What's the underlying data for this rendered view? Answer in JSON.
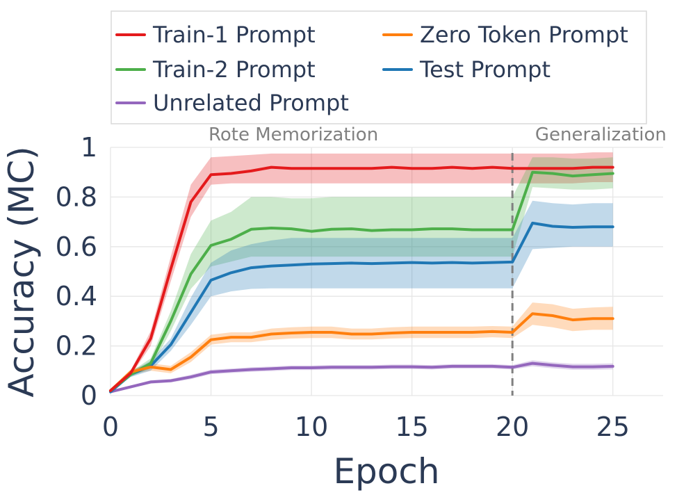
{
  "chart_data": {
    "type": "line",
    "xlabel": "Epoch",
    "ylabel": "Accuracy (MC)",
    "xlim": [
      0,
      27.5
    ],
    "ylim": [
      0,
      1.0
    ],
    "xticks": [
      0,
      5,
      10,
      15,
      20,
      25
    ],
    "yticks": [
      0,
      0.2,
      0.4,
      0.6,
      0.8,
      1.0
    ],
    "xtick_labels": [
      "0",
      "5",
      "10",
      "15",
      "20",
      "25"
    ],
    "ytick_labels": [
      "0",
      "0.2",
      "0.4",
      "0.6",
      "0.8",
      "1"
    ],
    "grid": true,
    "legend_position": "top",
    "x": [
      0,
      1,
      2,
      3,
      4,
      5,
      6,
      7,
      8,
      9,
      10,
      11,
      12,
      13,
      14,
      15,
      16,
      17,
      18,
      19,
      20,
      21,
      22,
      23,
      24,
      25
    ],
    "series": [
      {
        "name": "Train-1 Prompt",
        "color": "#e41a1c",
        "values": [
          0.02,
          0.09,
          0.23,
          0.51,
          0.78,
          0.89,
          0.895,
          0.905,
          0.92,
          0.915,
          0.915,
          0.915,
          0.915,
          0.915,
          0.92,
          0.915,
          0.915,
          0.92,
          0.915,
          0.92,
          0.915,
          0.915,
          0.915,
          0.915,
          0.92,
          0.92
        ],
        "lower": [
          0.015,
          0.08,
          0.2,
          0.46,
          0.72,
          0.85,
          0.855,
          0.855,
          0.855,
          0.855,
          0.855,
          0.855,
          0.855,
          0.855,
          0.855,
          0.855,
          0.855,
          0.855,
          0.855,
          0.855,
          0.855,
          0.855,
          0.855,
          0.855,
          0.86,
          0.86
        ],
        "upper": [
          0.025,
          0.1,
          0.26,
          0.56,
          0.85,
          0.96,
          0.965,
          0.97,
          0.975,
          0.975,
          0.975,
          0.975,
          0.975,
          0.975,
          0.975,
          0.975,
          0.975,
          0.975,
          0.975,
          0.975,
          0.975,
          0.975,
          0.975,
          0.975,
          0.98,
          0.98
        ]
      },
      {
        "name": "Zero Token Prompt",
        "color": "#ff7f0e",
        "values": [
          0.02,
          0.095,
          0.115,
          0.105,
          0.155,
          0.225,
          0.235,
          0.235,
          0.248,
          0.252,
          0.255,
          0.255,
          0.248,
          0.248,
          0.252,
          0.255,
          0.255,
          0.255,
          0.255,
          0.258,
          0.255,
          0.33,
          0.322,
          0.305,
          0.31,
          0.31
        ],
        "lower": [
          0.015,
          0.085,
          0.1,
          0.09,
          0.135,
          0.205,
          0.215,
          0.215,
          0.225,
          0.23,
          0.232,
          0.232,
          0.226,
          0.226,
          0.23,
          0.232,
          0.232,
          0.232,
          0.232,
          0.235,
          0.232,
          0.285,
          0.275,
          0.26,
          0.265,
          0.265
        ],
        "upper": [
          0.025,
          0.105,
          0.13,
          0.12,
          0.175,
          0.245,
          0.255,
          0.255,
          0.27,
          0.275,
          0.278,
          0.278,
          0.27,
          0.27,
          0.275,
          0.278,
          0.278,
          0.278,
          0.278,
          0.28,
          0.278,
          0.375,
          0.368,
          0.35,
          0.355,
          0.358
        ]
      },
      {
        "name": "Train-2 Prompt",
        "color": "#4daf4a",
        "values": [
          0.02,
          0.085,
          0.13,
          0.3,
          0.49,
          0.605,
          0.63,
          0.67,
          0.675,
          0.672,
          0.662,
          0.67,
          0.672,
          0.665,
          0.668,
          0.668,
          0.672,
          0.672,
          0.668,
          0.668,
          0.668,
          0.9,
          0.895,
          0.885,
          0.89,
          0.895
        ],
        "lower": [
          0.015,
          0.075,
          0.11,
          0.26,
          0.43,
          0.52,
          0.54,
          0.56,
          0.56,
          0.56,
          0.56,
          0.56,
          0.56,
          0.56,
          0.56,
          0.56,
          0.56,
          0.56,
          0.56,
          0.56,
          0.56,
          0.84,
          0.835,
          0.83,
          0.83,
          0.835
        ],
        "upper": [
          0.025,
          0.095,
          0.15,
          0.34,
          0.57,
          0.705,
          0.74,
          0.8,
          0.8,
          0.795,
          0.795,
          0.8,
          0.8,
          0.8,
          0.8,
          0.8,
          0.8,
          0.8,
          0.8,
          0.8,
          0.8,
          0.96,
          0.96,
          0.955,
          0.955,
          0.96
        ]
      },
      {
        "name": "Test Prompt",
        "color": "#1f77b4",
        "values": [
          0.015,
          0.085,
          0.12,
          0.205,
          0.335,
          0.465,
          0.495,
          0.515,
          0.522,
          0.526,
          0.53,
          0.532,
          0.534,
          0.532,
          0.534,
          0.536,
          0.534,
          0.536,
          0.534,
          0.536,
          0.538,
          0.695,
          0.682,
          0.678,
          0.68,
          0.68
        ],
        "lower": [
          0.01,
          0.075,
          0.1,
          0.18,
          0.285,
          0.4,
          0.42,
          0.43,
          0.432,
          0.432,
          0.432,
          0.432,
          0.432,
          0.432,
          0.432,
          0.432,
          0.432,
          0.432,
          0.432,
          0.432,
          0.432,
          0.59,
          0.595,
          0.6,
          0.6,
          0.6
        ],
        "upper": [
          0.02,
          0.095,
          0.14,
          0.23,
          0.395,
          0.535,
          0.585,
          0.61,
          0.625,
          0.635,
          0.635,
          0.635,
          0.635,
          0.635,
          0.635,
          0.635,
          0.635,
          0.635,
          0.635,
          0.635,
          0.635,
          0.785,
          0.775,
          0.77,
          0.775,
          0.775
        ]
      },
      {
        "name": "Unrelated Prompt",
        "color": "#9467bd",
        "values": [
          0.015,
          0.035,
          0.055,
          0.06,
          0.075,
          0.095,
          0.1,
          0.105,
          0.108,
          0.112,
          0.112,
          0.114,
          0.114,
          0.114,
          0.116,
          0.116,
          0.114,
          0.118,
          0.118,
          0.118,
          0.114,
          0.13,
          0.122,
          0.116,
          0.116,
          0.118
        ],
        "lower": [
          0.01,
          0.03,
          0.048,
          0.053,
          0.066,
          0.086,
          0.091,
          0.096,
          0.099,
          0.103,
          0.103,
          0.105,
          0.105,
          0.105,
          0.107,
          0.107,
          0.105,
          0.109,
          0.109,
          0.109,
          0.105,
          0.118,
          0.11,
          0.104,
          0.104,
          0.106
        ],
        "upper": [
          0.02,
          0.04,
          0.062,
          0.067,
          0.084,
          0.104,
          0.109,
          0.114,
          0.117,
          0.121,
          0.121,
          0.123,
          0.123,
          0.123,
          0.125,
          0.125,
          0.123,
          0.127,
          0.127,
          0.127,
          0.123,
          0.142,
          0.134,
          0.128,
          0.128,
          0.13
        ]
      }
    ],
    "legend_order": [
      "Train-1 Prompt",
      "Zero Token Prompt",
      "Train-2 Prompt",
      "Test Prompt",
      "Unrelated Prompt"
    ],
    "annotations": [
      {
        "text": "Rote Memorization",
        "x": 9.1
      },
      {
        "text": "Generalization",
        "x": 24.4
      }
    ],
    "vline": {
      "x": 20,
      "style": "dashed",
      "color": "#808080"
    }
  }
}
